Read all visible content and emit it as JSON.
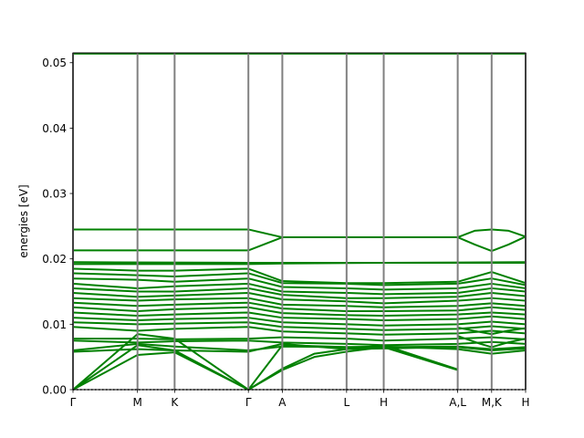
{
  "chart_data": {
    "type": "line",
    "title": "",
    "xlabel": "",
    "ylabel": "energies [eV]",
    "ylim": [
      0.0,
      0.0515
    ],
    "yticks": [
      0.0,
      0.01,
      0.02,
      0.03,
      0.04,
      0.05
    ],
    "ytick_labels": [
      "0.00",
      "0.01",
      "0.02",
      "0.03",
      "0.04",
      "0.05"
    ],
    "xlim": [
      0.0,
      1.0
    ],
    "kpoints": [
      {
        "label": "Γ",
        "x": 0.0
      },
      {
        "label": "M",
        "x": 0.1425
      },
      {
        "label": "K",
        "x": 0.2245
      },
      {
        "label": "Γ",
        "x": 0.3875
      },
      {
        "label": "A",
        "x": 0.4625
      },
      {
        "label": "L",
        "x": 0.6045
      },
      {
        "label": "H",
        "x": 0.6865
      },
      {
        "label": "A,L",
        "x": 0.85
      },
      {
        "label": "M,K",
        "x": 0.925
      },
      {
        "label": "H",
        "x": 1.0
      }
    ],
    "grid": false,
    "legend": "none",
    "colors": {
      "bands": "#008000",
      "kpoint_lines": "#808080",
      "zero_line": "#000000"
    },
    "series": [
      {
        "values": [
          [
            0.0,
            0.0514
          ],
          [
            1.0,
            0.0514
          ]
        ]
      },
      {
        "values": [
          [
            0.0,
            0.0245
          ],
          [
            0.3875,
            0.0245
          ],
          [
            0.4625,
            0.0233
          ],
          [
            0.85,
            0.0233
          ],
          [
            0.8875,
            0.0243
          ],
          [
            0.925,
            0.0245
          ],
          [
            0.9625,
            0.0243
          ],
          [
            1.0,
            0.0234
          ]
        ]
      },
      {
        "values": [
          [
            0.0,
            0.0213
          ],
          [
            0.3875,
            0.0213
          ],
          [
            0.4625,
            0.0233
          ],
          [
            0.85,
            0.0233
          ],
          [
            0.8875,
            0.0222
          ],
          [
            0.925,
            0.0212
          ],
          [
            0.9625,
            0.0222
          ],
          [
            1.0,
            0.0234
          ]
        ]
      },
      {
        "values": [
          [
            0.0,
            0.0195
          ],
          [
            0.3875,
            0.0194
          ],
          [
            0.4625,
            0.0194
          ],
          [
            0.6865,
            0.0194
          ],
          [
            1.0,
            0.0195
          ]
        ]
      },
      {
        "values": [
          [
            0.0,
            0.0192
          ],
          [
            0.3875,
            0.0192
          ],
          [
            0.4625,
            0.0193
          ],
          [
            0.6865,
            0.0194
          ],
          [
            1.0,
            0.0194
          ]
        ]
      },
      {
        "values": [
          [
            0.0,
            0.0185
          ],
          [
            0.1425,
            0.0182
          ],
          [
            0.2245,
            0.0182
          ],
          [
            0.3875,
            0.0185
          ],
          [
            0.4625,
            0.0166
          ],
          [
            0.6045,
            0.0163
          ],
          [
            0.6865,
            0.0163
          ],
          [
            0.85,
            0.0165
          ],
          [
            0.925,
            0.018
          ],
          [
            1.0,
            0.0163
          ]
        ]
      },
      {
        "values": [
          [
            0.0,
            0.0178
          ],
          [
            0.1425,
            0.0175
          ],
          [
            0.2245,
            0.0173
          ],
          [
            0.3875,
            0.0178
          ],
          [
            0.4625,
            0.0163
          ],
          [
            0.6045,
            0.0162
          ],
          [
            0.6865,
            0.016
          ],
          [
            0.85,
            0.0162
          ],
          [
            0.925,
            0.017
          ],
          [
            1.0,
            0.016
          ]
        ]
      },
      {
        "values": [
          [
            0.0,
            0.017
          ],
          [
            0.1425,
            0.0168
          ],
          [
            0.2245,
            0.0165
          ],
          [
            0.3875,
            0.017
          ],
          [
            0.4625,
            0.0157
          ],
          [
            0.6045,
            0.0155
          ],
          [
            0.6865,
            0.0153
          ],
          [
            0.85,
            0.0155
          ],
          [
            0.925,
            0.0162
          ],
          [
            1.0,
            0.0155
          ]
        ]
      },
      {
        "values": [
          [
            0.0,
            0.0162
          ],
          [
            0.1425,
            0.0155
          ],
          [
            0.2245,
            0.0158
          ],
          [
            0.3875,
            0.0162
          ],
          [
            0.4625,
            0.015
          ],
          [
            0.6045,
            0.0148
          ],
          [
            0.6865,
            0.0146
          ],
          [
            0.85,
            0.0148
          ],
          [
            0.925,
            0.0155
          ],
          [
            1.0,
            0.015
          ]
        ]
      },
      {
        "values": [
          [
            0.0,
            0.0155
          ],
          [
            0.1425,
            0.015
          ],
          [
            0.2245,
            0.015
          ],
          [
            0.3875,
            0.0155
          ],
          [
            0.4625,
            0.0145
          ],
          [
            0.6045,
            0.014
          ],
          [
            0.6865,
            0.014
          ],
          [
            0.85,
            0.0142
          ],
          [
            0.925,
            0.0148
          ],
          [
            1.0,
            0.0143
          ]
        ]
      },
      {
        "values": [
          [
            0.0,
            0.0148
          ],
          [
            0.1425,
            0.0142
          ],
          [
            0.2245,
            0.0144
          ],
          [
            0.3875,
            0.0148
          ],
          [
            0.4625,
            0.0138
          ],
          [
            0.6045,
            0.0135
          ],
          [
            0.6865,
            0.0132
          ],
          [
            0.85,
            0.0136
          ],
          [
            0.925,
            0.014
          ],
          [
            1.0,
            0.0136
          ]
        ]
      },
      {
        "values": [
          [
            0.0,
            0.014
          ],
          [
            0.1425,
            0.0136
          ],
          [
            0.2245,
            0.0138
          ],
          [
            0.3875,
            0.014
          ],
          [
            0.4625,
            0.013
          ],
          [
            0.6045,
            0.0128
          ],
          [
            0.6865,
            0.0126
          ],
          [
            0.85,
            0.0128
          ],
          [
            0.925,
            0.0132
          ],
          [
            1.0,
            0.0128
          ]
        ]
      },
      {
        "values": [
          [
            0.0,
            0.0133
          ],
          [
            0.1425,
            0.0128
          ],
          [
            0.2245,
            0.013
          ],
          [
            0.3875,
            0.0133
          ],
          [
            0.4625,
            0.0124
          ],
          [
            0.6045,
            0.012
          ],
          [
            0.6865,
            0.012
          ],
          [
            0.85,
            0.0121
          ],
          [
            0.925,
            0.0126
          ],
          [
            1.0,
            0.0122
          ]
        ]
      },
      {
        "values": [
          [
            0.0,
            0.0126
          ],
          [
            0.1425,
            0.012
          ],
          [
            0.2245,
            0.0123
          ],
          [
            0.3875,
            0.0126
          ],
          [
            0.4625,
            0.0117
          ],
          [
            0.6045,
            0.0114
          ],
          [
            0.6865,
            0.0113
          ],
          [
            0.85,
            0.0115
          ],
          [
            0.925,
            0.0118
          ],
          [
            1.0,
            0.0115
          ]
        ]
      },
      {
        "values": [
          [
            0.0,
            0.0118
          ],
          [
            0.1425,
            0.0113
          ],
          [
            0.2245,
            0.0115
          ],
          [
            0.3875,
            0.0118
          ],
          [
            0.4625,
            0.011
          ],
          [
            0.6045,
            0.0108
          ],
          [
            0.6865,
            0.0106
          ],
          [
            0.85,
            0.0108
          ],
          [
            0.925,
            0.0112
          ],
          [
            1.0,
            0.0108
          ]
        ]
      },
      {
        "values": [
          [
            0.0,
            0.011
          ],
          [
            0.1425,
            0.0106
          ],
          [
            0.2245,
            0.0108
          ],
          [
            0.3875,
            0.011
          ],
          [
            0.4625,
            0.0103
          ],
          [
            0.6045,
            0.01
          ],
          [
            0.6865,
            0.0098
          ],
          [
            0.85,
            0.01
          ],
          [
            0.925,
            0.0104
          ],
          [
            1.0,
            0.01
          ]
        ]
      },
      {
        "values": [
          [
            0.0,
            0.0103
          ],
          [
            0.1425,
            0.01
          ],
          [
            0.2245,
            0.0101
          ],
          [
            0.3875,
            0.0103
          ],
          [
            0.4625,
            0.0096
          ],
          [
            0.6045,
            0.0093
          ],
          [
            0.6865,
            0.0091
          ],
          [
            0.85,
            0.0093
          ],
          [
            0.925,
            0.0097
          ],
          [
            1.0,
            0.0093
          ]
        ]
      },
      {
        "values": [
          [
            0.0,
            0.0096
          ],
          [
            0.1425,
            0.009
          ],
          [
            0.2245,
            0.0093
          ],
          [
            0.3875,
            0.0096
          ],
          [
            0.4625,
            0.0089
          ],
          [
            0.6045,
            0.0086
          ],
          [
            0.6865,
            0.0084
          ],
          [
            0.85,
            0.0086
          ],
          [
            0.925,
            0.009
          ],
          [
            1.0,
            0.0086
          ]
        ]
      },
      {
        "values": [
          [
            0.0,
            0.0078
          ],
          [
            0.1425,
            0.0078
          ],
          [
            0.2245,
            0.0077
          ],
          [
            0.3875,
            0.0078
          ],
          [
            0.4625,
            0.008
          ],
          [
            0.6045,
            0.0078
          ],
          [
            0.6865,
            0.0075
          ],
          [
            0.85,
            0.0078
          ],
          [
            0.925,
            0.008
          ],
          [
            1.0,
            0.0077
          ]
        ]
      },
      {
        "values": [
          [
            0.0,
            0.0075
          ],
          [
            0.1425,
            0.0072
          ],
          [
            0.2245,
            0.0074
          ],
          [
            0.3875,
            0.0075
          ],
          [
            0.4625,
            0.0072
          ],
          [
            0.6045,
            0.007
          ],
          [
            0.6865,
            0.0068
          ],
          [
            0.85,
            0.007
          ],
          [
            0.925,
            0.0073
          ],
          [
            1.0,
            0.007
          ]
        ]
      },
      {
        "values": [
          [
            0.0,
            0.006
          ],
          [
            0.1425,
            0.007
          ],
          [
            0.2245,
            0.0066
          ],
          [
            0.3875,
            0.006
          ],
          [
            0.4625,
            0.0066
          ],
          [
            0.6045,
            0.0065
          ],
          [
            0.6865,
            0.0065
          ],
          [
            0.85,
            0.0066
          ],
          [
            0.925,
            0.0062
          ],
          [
            1.0,
            0.0065
          ]
        ]
      },
      {
        "values": [
          [
            0.0,
            0.0058
          ],
          [
            0.1425,
            0.0062
          ],
          [
            0.2245,
            0.006
          ],
          [
            0.3875,
            0.0058
          ],
          [
            0.4625,
            0.007
          ],
          [
            0.6045,
            0.0062
          ],
          [
            0.6865,
            0.0063
          ],
          [
            0.85,
            0.0065
          ],
          [
            0.925,
            0.006
          ],
          [
            1.0,
            0.0063
          ]
        ]
      },
      {
        "values": [
          [
            0.0,
            0.0
          ],
          [
            0.1425,
            0.0068
          ],
          [
            0.2245,
            0.006
          ],
          [
            0.3875,
            0.0
          ],
          [
            0.4625,
            0.0032
          ],
          [
            0.5335,
            0.0055
          ],
          [
            0.6045,
            0.0062
          ],
          [
            0.6865,
            0.0068
          ],
          [
            0.85,
            0.0031
          ]
        ]
      },
      {
        "values": [
          [
            0.0,
            0.0
          ],
          [
            0.1425,
            0.0053
          ],
          [
            0.2245,
            0.0057
          ],
          [
            0.3875,
            0.0
          ],
          [
            0.4625,
            0.003
          ],
          [
            0.5335,
            0.005
          ],
          [
            0.6045,
            0.0058
          ],
          [
            0.6865,
            0.0065
          ],
          [
            0.85,
            0.003
          ]
        ]
      },
      {
        "values": [
          [
            0.0,
            0.0
          ],
          [
            0.1425,
            0.0085
          ],
          [
            0.2245,
            0.0078
          ],
          [
            0.3875,
            0.0
          ],
          [
            0.4625,
            0.0068
          ],
          [
            0.6045,
            0.0065
          ],
          [
            0.6865,
            0.0066
          ],
          [
            0.85,
            0.0062
          ],
          [
            0.925,
            0.0055
          ],
          [
            1.0,
            0.006
          ]
        ]
      },
      {
        "values": [
          [
            0.85,
            0.0082
          ],
          [
            0.9,
            0.007
          ],
          [
            0.925,
            0.0065
          ],
          [
            0.96,
            0.0072
          ],
          [
            1.0,
            0.0078
          ]
        ]
      },
      {
        "values": [
          [
            0.85,
            0.0095
          ],
          [
            0.9,
            0.0088
          ],
          [
            0.925,
            0.0085
          ],
          [
            0.96,
            0.009
          ],
          [
            1.0,
            0.0094
          ]
        ]
      }
    ]
  }
}
